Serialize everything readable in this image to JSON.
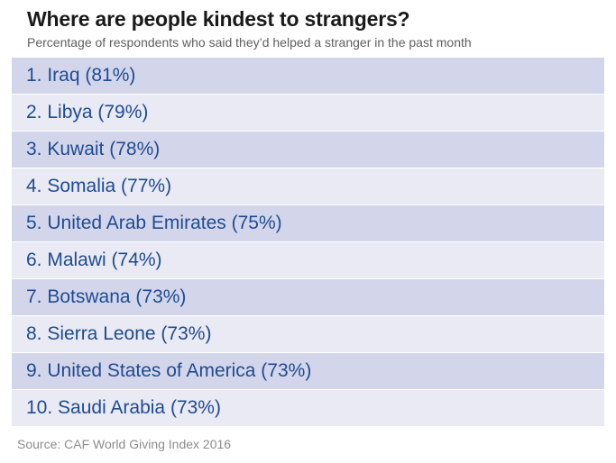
{
  "title": "Where are people kindest to strangers?",
  "subtitle": "Percentage of respondents who said they’d helped a stranger in the past month",
  "source": "Source: CAF World Giving Index 2016",
  "colors": {
    "row_odd": "#d3d6ea",
    "row_even": "#e9eaf3",
    "label_text": "#1f4b93"
  },
  "chart_data": {
    "type": "table",
    "title": "Where are people kindest to strangers?",
    "subtitle": "Percentage of respondents who said they’d helped a stranger in the past month",
    "rows": [
      {
        "label": "1. Iraq (81%)",
        "rank": 1,
        "country": "Iraq",
        "value": 81
      },
      {
        "label": "2. Libya (79%)",
        "rank": 2,
        "country": "Libya",
        "value": 79
      },
      {
        "label": "3. Kuwait (78%)",
        "rank": 3,
        "country": "Kuwait",
        "value": 78
      },
      {
        "label": "4. Somalia (77%)",
        "rank": 4,
        "country": "Somalia",
        "value": 77
      },
      {
        "label": "5. United Arab Emirates (75%)",
        "rank": 5,
        "country": "United Arab Emirates",
        "value": 75
      },
      {
        "label": "6. Malawi (74%)",
        "rank": 6,
        "country": "Malawi",
        "value": 74
      },
      {
        "label": "7. Botswana (73%)",
        "rank": 7,
        "country": "Botswana",
        "value": 73
      },
      {
        "label": "8. Sierra Leone (73%)",
        "rank": 8,
        "country": "Sierra Leone",
        "value": 73
      },
      {
        "label": "9. United States of America (73%)",
        "rank": 9,
        "country": "United States of America",
        "value": 73
      },
      {
        "label": "10. Saudi Arabia (73%)",
        "rank": 10,
        "country": "Saudi Arabia",
        "value": 73
      }
    ]
  }
}
